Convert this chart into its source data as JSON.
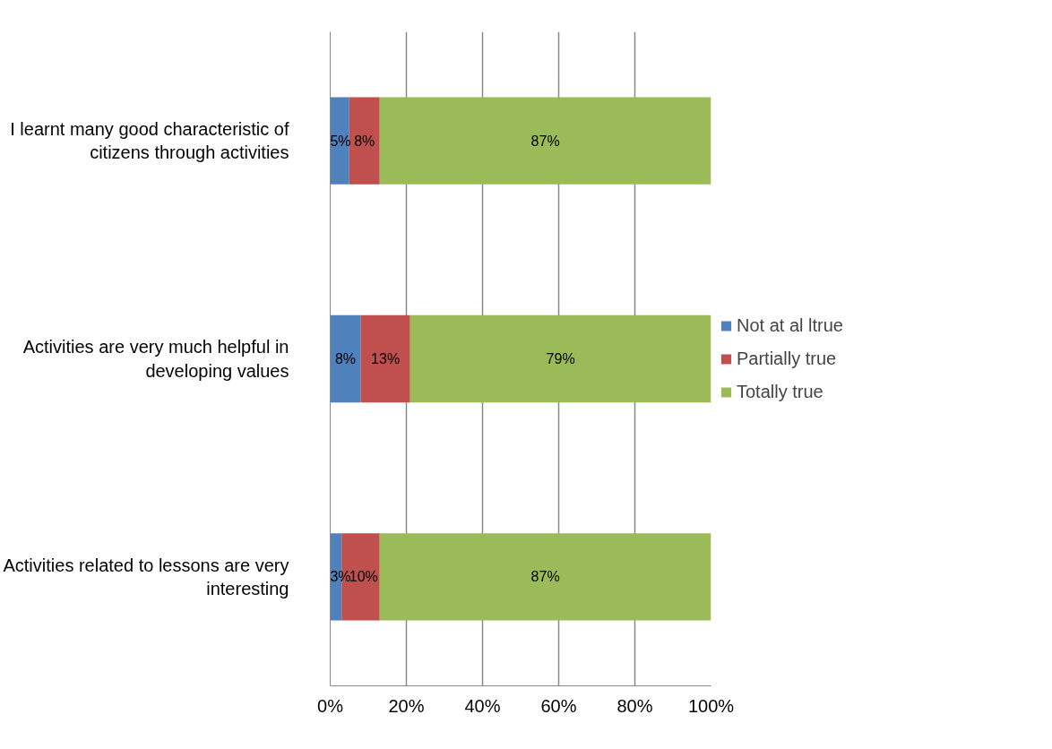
{
  "chart_data": {
    "type": "bar",
    "orientation": "horizontal",
    "stacked": true,
    "categories": [
      "I learnt many good characteristic of citizens through activities",
      "Activities are very much helpful in developing values",
      "Activities related to lessons are very interesting"
    ],
    "series": [
      {
        "name": "Not at al ltrue",
        "color": "#4f81bd",
        "values": [
          5,
          8,
          3
        ],
        "value_labels": [
          "5%",
          "8%",
          "3%"
        ]
      },
      {
        "name": "Partially true",
        "color": "#c0504d",
        "values": [
          8,
          13,
          10
        ],
        "value_labels": [
          "8%",
          "13%",
          "10%"
        ]
      },
      {
        "name": "Totally true",
        "color": "#9bbb59",
        "values": [
          87,
          79,
          87
        ],
        "value_labels": [
          "87%",
          "79%",
          "87%"
        ]
      }
    ],
    "xlim": [
      0,
      100
    ],
    "xticks": [
      {
        "value": 0,
        "label": "0%"
      },
      {
        "value": 20,
        "label": "20%"
      },
      {
        "value": 40,
        "label": "40%"
      },
      {
        "value": 60,
        "label": "60%"
      },
      {
        "value": 80,
        "label": "80%"
      },
      {
        "value": 100,
        "label": "100%"
      }
    ],
    "grid": "x",
    "legend": "right"
  }
}
